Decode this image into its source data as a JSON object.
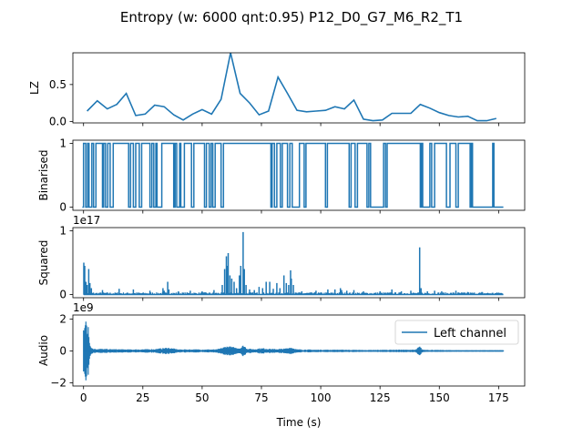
{
  "figure": {
    "title": "Entropy (w: 6000 qnt:0.95) P12_D0_G7_M6_R2_T1",
    "xlabel": "Time (s)",
    "line_color": "#1f77b4"
  },
  "chart_data": [
    {
      "type": "line",
      "ylabel": "LZ",
      "xlim": [
        -4.5,
        186
      ],
      "ylim": [
        -0.02,
        0.93
      ],
      "yticks": [
        0.0,
        0.5
      ],
      "ytick_labels": [
        "0.0",
        "0.5"
      ],
      "xticks": [
        0,
        25,
        50,
        75,
        100,
        125,
        150,
        175
      ],
      "x": [
        1.5,
        5.8,
        10,
        14,
        18,
        22,
        26,
        30,
        34,
        38,
        42,
        46,
        50,
        54,
        58,
        62,
        66,
        70,
        74,
        78,
        82,
        86,
        90,
        94,
        98,
        102,
        106,
        110,
        114,
        118,
        122,
        126,
        130,
        134,
        138,
        142,
        146,
        150,
        154,
        158,
        162,
        166,
        170,
        174
      ],
      "y": [
        0.14,
        0.28,
        0.17,
        0.23,
        0.38,
        0.08,
        0.1,
        0.22,
        0.2,
        0.09,
        0.02,
        0.1,
        0.16,
        0.1,
        0.3,
        0.93,
        0.38,
        0.25,
        0.09,
        0.14,
        0.6,
        0.38,
        0.15,
        0.13,
        0.14,
        0.15,
        0.2,
        0.17,
        0.29,
        0.03,
        0.01,
        0.02,
        0.11,
        0.11,
        0.11,
        0.23,
        0.18,
        0.12,
        0.08,
        0.06,
        0.07,
        0.01,
        0.01,
        0.04
      ]
    },
    {
      "type": "line",
      "ylabel": "Binarised",
      "xlim": [
        -4.5,
        186
      ],
      "ylim": [
        -0.05,
        1.05
      ],
      "yticks": [
        0,
        1
      ],
      "ytick_labels": [
        "0",
        "1"
      ],
      "xticks": [
        0,
        25,
        50,
        75,
        100,
        125,
        150,
        175
      ],
      "pulses": [
        [
          0,
          0.9
        ],
        [
          1.7,
          2.3
        ],
        [
          3.5,
          4.2
        ],
        [
          5.2,
          8
        ],
        [
          8.5,
          9.3
        ],
        [
          10.2,
          11.2
        ],
        [
          12.5,
          19
        ],
        [
          19.8,
          21
        ],
        [
          22,
          23.5
        ],
        [
          24.5,
          28
        ],
        [
          28.8,
          29.6
        ],
        [
          30.5,
          31
        ],
        [
          33,
          38
        ],
        [
          38.6,
          39.3
        ],
        [
          40.5,
          41
        ],
        [
          42.5,
          45.5
        ],
        [
          46.5,
          51
        ],
        [
          51.8,
          53
        ],
        [
          53.8,
          54.5
        ],
        [
          55.5,
          58
        ],
        [
          59,
          79
        ],
        [
          79.5,
          80.5
        ],
        [
          81.5,
          83
        ],
        [
          83.8,
          86
        ],
        [
          87,
          88
        ],
        [
          91,
          93
        ],
        [
          93.8,
          102
        ],
        [
          102.8,
          112
        ],
        [
          112.8,
          114.5
        ],
        [
          115.5,
          119.5
        ],
        [
          120.3,
          121
        ],
        [
          126.5,
          127.3
        ],
        [
          128,
          142
        ],
        [
          142.5,
          143
        ],
        [
          146,
          146.8
        ],
        [
          148,
          153
        ],
        [
          154.5,
          157
        ],
        [
          158,
          163
        ],
        [
          163.5,
          164
        ],
        [
          172.5,
          173
        ]
      ]
    },
    {
      "type": "line",
      "ylabel": "Squared",
      "exponent_label": "1e17",
      "xlim": [
        -4.5,
        186
      ],
      "ylim": [
        -0.05,
        1.05
      ],
      "yticks": [
        0,
        1
      ],
      "ytick_labels": [
        "0",
        "1"
      ],
      "xticks": [
        0,
        25,
        50,
        75,
        100,
        125,
        150,
        175
      ],
      "spikes": [
        [
          0.1,
          0.5
        ],
        [
          0.5,
          0.45
        ],
        [
          1.0,
          0.2
        ],
        [
          1.5,
          0.15
        ],
        [
          2.2,
          0.4
        ],
        [
          2.7,
          0.18
        ],
        [
          3.3,
          0.1
        ],
        [
          8,
          0.07
        ],
        [
          15,
          0.09
        ],
        [
          21,
          0.08
        ],
        [
          28,
          0.06
        ],
        [
          33.5,
          0.1
        ],
        [
          34,
          0.06
        ],
        [
          35.5,
          0.2
        ],
        [
          36,
          0.08
        ],
        [
          40,
          0.05
        ],
        [
          45,
          0.06
        ],
        [
          50,
          0.05
        ],
        [
          55,
          0.07
        ],
        [
          58.5,
          0.15
        ],
        [
          59.5,
          0.4
        ],
        [
          60.2,
          0.6
        ],
        [
          60.5,
          0.45
        ],
        [
          61,
          0.65
        ],
        [
          61.7,
          0.3
        ],
        [
          62.5,
          0.25
        ],
        [
          63.5,
          0.2
        ],
        [
          64.5,
          0.1
        ],
        [
          65.7,
          0.3
        ],
        [
          66.3,
          0.45
        ],
        [
          67.3,
          0.98
        ],
        [
          67.8,
          0.4
        ],
        [
          68.5,
          0.15
        ],
        [
          70,
          0.08
        ],
        [
          72,
          0.07
        ],
        [
          74,
          0.12
        ],
        [
          75.5,
          0.1
        ],
        [
          77,
          0.2
        ],
        [
          78.5,
          0.2
        ],
        [
          80,
          0.09
        ],
        [
          81.5,
          0.18
        ],
        [
          82.8,
          0.1
        ],
        [
          84.5,
          0.3
        ],
        [
          85.5,
          0.18
        ],
        [
          86.5,
          0.15
        ],
        [
          87.3,
          0.38
        ],
        [
          87.6,
          0.25
        ],
        [
          88.5,
          0.15
        ],
        [
          92,
          0.05
        ],
        [
          98,
          0.06
        ],
        [
          103,
          0.08
        ],
        [
          106,
          0.08
        ],
        [
          108.3,
          0.1
        ],
        [
          108.8,
          0.07
        ],
        [
          111,
          0.06
        ],
        [
          114,
          0.07
        ],
        [
          118,
          0.05
        ],
        [
          125,
          0.05
        ],
        [
          130,
          0.08
        ],
        [
          134,
          0.05
        ],
        [
          138,
          0.06
        ],
        [
          141.7,
          0.74
        ],
        [
          142.3,
          0.1
        ],
        [
          145,
          0.05
        ],
        [
          148,
          0.06
        ],
        [
          151,
          0.05
        ],
        [
          157,
          0.06
        ],
        [
          162,
          0.04
        ],
        [
          168,
          0.04
        ],
        [
          175,
          0.03
        ]
      ],
      "baseline_end": 177
    },
    {
      "type": "line",
      "ylabel": "Audio",
      "exponent_label": "1e9",
      "legend": "Left channel",
      "legend_position": "upper right",
      "xlim": [
        -4.5,
        186
      ],
      "ylim": [
        -2.2,
        2.25
      ],
      "yticks": [
        -2,
        0,
        2
      ],
      "ytick_labels": [
        "−2",
        "0",
        "2"
      ],
      "xticks": [
        0,
        25,
        50,
        75,
        100,
        125,
        150,
        175
      ],
      "xtick_labels": [
        "0",
        "25",
        "50",
        "75",
        "100",
        "125",
        "150",
        "175"
      ],
      "envelope": [
        [
          0,
          2.0
        ],
        [
          0.4,
          2.1
        ],
        [
          0.8,
          1.9
        ],
        [
          1.2,
          2.0
        ],
        [
          1.6,
          1.2
        ],
        [
          2.0,
          2.05
        ],
        [
          2.5,
          0.8
        ],
        [
          3.0,
          0.3
        ],
        [
          4,
          0.15
        ],
        [
          10,
          0.12
        ],
        [
          20,
          0.1
        ],
        [
          30,
          0.12
        ],
        [
          35.5,
          0.22
        ],
        [
          40,
          0.1
        ],
        [
          50,
          0.1
        ],
        [
          56,
          0.1
        ],
        [
          58,
          0.18
        ],
        [
          60,
          0.3
        ],
        [
          62,
          0.28
        ],
        [
          64,
          0.22
        ],
        [
          66,
          0.2
        ],
        [
          67.5,
          0.38
        ],
        [
          69,
          0.15
        ],
        [
          72,
          0.12
        ],
        [
          75,
          0.18
        ],
        [
          78,
          0.15
        ],
        [
          80,
          0.12
        ],
        [
          85,
          0.15
        ],
        [
          87.5,
          0.25
        ],
        [
          90,
          0.1
        ],
        [
          100,
          0.08
        ],
        [
          110,
          0.08
        ],
        [
          120,
          0.06
        ],
        [
          130,
          0.08
        ],
        [
          140,
          0.08
        ],
        [
          141.7,
          0.3
        ],
        [
          143,
          0.08
        ],
        [
          150,
          0.06
        ],
        [
          160,
          0.05
        ],
        [
          170,
          0.05
        ],
        [
          177,
          0.05
        ]
      ]
    }
  ]
}
